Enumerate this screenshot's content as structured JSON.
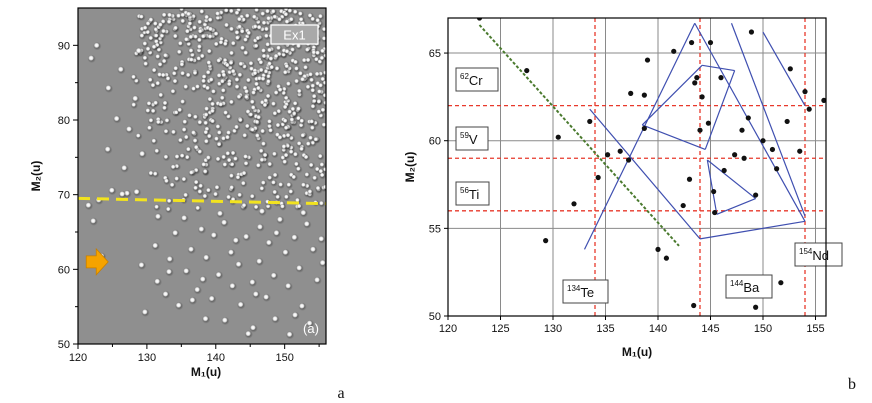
{
  "chart_data": [
    {
      "type": "scatter",
      "panel": "a",
      "xlabel": "M₁(u)",
      "ylabel": "M₂(u)",
      "xlim": [
        120,
        156
      ],
      "ylim": [
        50,
        95
      ],
      "xticks": [
        "120",
        "130",
        "140",
        "150"
      ],
      "yticks": [
        "50",
        "60",
        "70",
        "80",
        "90"
      ],
      "legend_box": "Ex1",
      "corner_label": "(a)",
      "threshold_line_y": [
        69.5,
        68.8
      ],
      "grid": false,
      "background": "#8f8f8f",
      "point_color": "#ffffff",
      "threshold_color": "#f2e31f",
      "arrow_color": "#f5a300",
      "points_dense_region": {
        "x_range": [
          128,
          156
        ],
        "y_range": [
          68,
          95
        ],
        "approx_count": 700
      },
      "points_sparse": [
        [
          121.5,
          68.6
        ],
        [
          122.2,
          66.5
        ],
        [
          123,
          69.3
        ],
        [
          123.4,
          61.8
        ],
        [
          122.7,
          90
        ],
        [
          124.4,
          84.3
        ],
        [
          124.3,
          76.1
        ],
        [
          125.6,
          80.2
        ],
        [
          126.2,
          86.8
        ],
        [
          126.7,
          73.6
        ],
        [
          127.4,
          78.8
        ],
        [
          127.1,
          70.2
        ],
        [
          128.8,
          89.3
        ],
        [
          128.3,
          82.9
        ],
        [
          129.3,
          75.5
        ],
        [
          126.4,
          70.1
        ],
        [
          124.9,
          70.6
        ],
        [
          121.9,
          88.3
        ],
        [
          128.5,
          70.4
        ],
        [
          129.2,
          60.6
        ],
        [
          129.7,
          54.3
        ],
        [
          131.2,
          63.2
        ],
        [
          131.5,
          58.4
        ],
        [
          132.7,
          56.7
        ],
        [
          133.3,
          61.4
        ],
        [
          134.1,
          64.9
        ],
        [
          134.6,
          55.2
        ],
        [
          135.7,
          59.8
        ],
        [
          136.4,
          62.7
        ],
        [
          137.3,
          57.3
        ],
        [
          137.9,
          65.4
        ],
        [
          138.5,
          53.4
        ],
        [
          138.6,
          61.6
        ],
        [
          139.4,
          56.1
        ],
        [
          139.7,
          64.6
        ],
        [
          140.4,
          59.3
        ],
        [
          141.2,
          66.3
        ],
        [
          141.3,
          53.2
        ],
        [
          142.2,
          62.3
        ],
        [
          142.4,
          57.8
        ],
        [
          143.3,
          60.7
        ],
        [
          143.6,
          55.3
        ],
        [
          144.4,
          64.4
        ],
        [
          145.3,
          58.3
        ],
        [
          145.4,
          52.2
        ],
        [
          146.3,
          61.1
        ],
        [
          146.4,
          65.7
        ],
        [
          147.3,
          56.3
        ],
        [
          147.7,
          63.6
        ],
        [
          148.4,
          59.2
        ],
        [
          148.6,
          53.4
        ],
        [
          149.3,
          66.7
        ],
        [
          150.1,
          62.3
        ],
        [
          150.5,
          57.8
        ],
        [
          151.4,
          64.3
        ],
        [
          152.1,
          60.2
        ],
        [
          152.5,
          55.1
        ],
        [
          153.2,
          66.1
        ],
        [
          154.1,
          62.7
        ],
        [
          154.7,
          58.6
        ],
        [
          155.3,
          64.1
        ],
        [
          153.6,
          52.8
        ],
        [
          150.7,
          51.3
        ],
        [
          144.7,
          51.4
        ],
        [
          140.6,
          67.5
        ],
        [
          135.4,
          66.9
        ],
        [
          131.6,
          67.1
        ],
        [
          146.7,
          67.8
        ],
        [
          152.7,
          67.6
        ],
        [
          155.5,
          60.9
        ],
        [
          138.1,
          58.7
        ],
        [
          142.9,
          63.9
        ],
        [
          133.2,
          59.7
        ],
        [
          136.6,
          55.9
        ],
        [
          148.8,
          64.9
        ],
        [
          145.8,
          56.7
        ],
        [
          151.5,
          53.9
        ]
      ]
    },
    {
      "type": "scatter",
      "panel": "b",
      "xlabel": "M₁(u)",
      "ylabel": "M₂(u)",
      "xlim": [
        120,
        156
      ],
      "ylim": [
        50,
        67
      ],
      "xticks": [
        "120",
        "125",
        "130",
        "135",
        "140",
        "145",
        "150",
        "155"
      ],
      "yticks": [
        "50",
        "55",
        "60",
        "65"
      ],
      "grid": true,
      "red_dashed_vertical_x": [
        134,
        144,
        154
      ],
      "red_dashed_horizontal_y": [
        56,
        59,
        62
      ],
      "green_dashed_line": [
        [
          123,
          66.6
        ],
        [
          142,
          54
        ]
      ],
      "nuclide_labels": [
        {
          "mass": "62",
          "symbol": "Cr"
        },
        {
          "mass": "59",
          "symbol": "V"
        },
        {
          "mass": "56",
          "symbol": "Ti"
        },
        {
          "mass": "134",
          "symbol": "Te"
        },
        {
          "mass": "144",
          "symbol": "Ba"
        },
        {
          "mass": "154",
          "symbol": "Nd"
        }
      ],
      "blue_outer_diamond": [
        [
          133,
          53.8
        ],
        [
          143.5,
          66.7
        ],
        [
          154,
          55.4
        ],
        [
          144,
          54.4
        ],
        [
          133.5,
          61.8
        ]
      ],
      "blue_lines": [
        [
          [
            133,
            53.8
          ],
          [
            143.5,
            66.7
          ]
        ],
        [
          [
            133.5,
            61.8
          ],
          [
            144,
            54.4
          ]
        ],
        [
          [
            143.5,
            66.7
          ],
          [
            154,
            55.4
          ]
        ],
        [
          [
            144,
            54.4
          ],
          [
            154,
            55.4
          ]
        ],
        [
          [
            138.5,
            60.9
          ],
          [
            144.2,
            64.3
          ]
        ],
        [
          [
            144.2,
            64.3
          ],
          [
            147.3,
            64
          ]
        ],
        [
          [
            147.3,
            64
          ],
          [
            144.5,
            59.5
          ]
        ],
        [
          [
            144.5,
            59.5
          ],
          [
            138.5,
            60.9
          ]
        ],
        [
          [
            144.7,
            58.9
          ],
          [
            149.3,
            56.7
          ]
        ],
        [
          [
            149.3,
            56.7
          ],
          [
            145.6,
            55.8
          ]
        ],
        [
          [
            145.6,
            55.8
          ],
          [
            144.7,
            58.9
          ]
        ],
        [
          [
            147,
            66.7
          ],
          [
            154,
            55.7
          ]
        ],
        [
          [
            150,
            66.2
          ],
          [
            154,
            62
          ]
        ]
      ],
      "points": [
        [
          123,
          67
        ],
        [
          127.5,
          64
        ],
        [
          129.3,
          54.3
        ],
        [
          130.5,
          60.2
        ],
        [
          132,
          56.4
        ],
        [
          133.5,
          61.1
        ],
        [
          134.3,
          57.9
        ],
        [
          135.2,
          59.2
        ],
        [
          136.4,
          59.4
        ],
        [
          137.2,
          58.9
        ],
        [
          137.4,
          62.7
        ],
        [
          138.7,
          62.6
        ],
        [
          138.7,
          60.7
        ],
        [
          139,
          64.6
        ],
        [
          140,
          53.8
        ],
        [
          140.8,
          53.3
        ],
        [
          141.5,
          65.1
        ],
        [
          142.4,
          56.3
        ],
        [
          143,
          57.8
        ],
        [
          143.2,
          65.6
        ],
        [
          143.5,
          63.3
        ],
        [
          143.7,
          63.6
        ],
        [
          144,
          60.6
        ],
        [
          144.2,
          62.5
        ],
        [
          144.8,
          61
        ],
        [
          145,
          65.6
        ],
        [
          145.3,
          57.1
        ],
        [
          145.4,
          55.9
        ],
        [
          146,
          63.6
        ],
        [
          146.3,
          58.3
        ],
        [
          147.3,
          59.2
        ],
        [
          148,
          60.6
        ],
        [
          148.2,
          59
        ],
        [
          148.6,
          61.3
        ],
        [
          148.9,
          66.2
        ],
        [
          149.3,
          56.9
        ],
        [
          149.3,
          50.5
        ],
        [
          150,
          60
        ],
        [
          150.9,
          59.5
        ],
        [
          151.3,
          58.4
        ],
        [
          151.7,
          51.9
        ],
        [
          152.3,
          61.1
        ],
        [
          152.6,
          64.1
        ],
        [
          153.5,
          59.4
        ],
        [
          154,
          62.8
        ],
        [
          154.4,
          61.8
        ],
        [
          155.8,
          62.3
        ],
        [
          143.4,
          50.6
        ]
      ]
    }
  ],
  "figure_labels": {
    "left": "a",
    "right": "b"
  }
}
